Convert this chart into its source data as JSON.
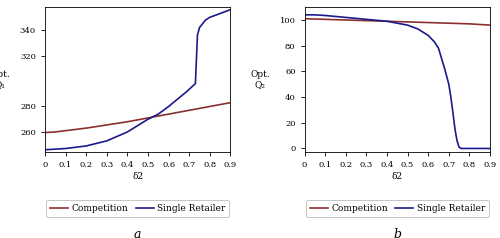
{
  "subplot_a": {
    "xlabel": "δ2",
    "ylabel_line1": "Opt.",
    "ylabel_line2": "Q₁",
    "xlim": [
      0,
      0.9
    ],
    "ylim": [
      244,
      358
    ],
    "yticks": [
      260,
      280,
      320,
      340
    ],
    "xticks": [
      0,
      0.1,
      0.2,
      0.3,
      0.4,
      0.5,
      0.6,
      0.7,
      0.8,
      0.9
    ],
    "xtick_labels": [
      "0",
      "0.1",
      "0.2",
      "0.3",
      "0.4",
      "0.5",
      "0.6",
      "0.7",
      "0.8",
      "0.9"
    ],
    "competition_x": [
      0.0,
      0.05,
      0.1,
      0.2,
      0.3,
      0.4,
      0.5,
      0.6,
      0.65,
      0.7,
      0.75,
      0.8,
      0.85,
      0.9
    ],
    "competition_y": [
      259.5,
      260,
      261,
      263,
      265.5,
      268,
      271,
      274,
      275.5,
      277,
      278.5,
      280,
      281.5,
      283
    ],
    "single_x": [
      0.0,
      0.05,
      0.1,
      0.2,
      0.3,
      0.4,
      0.5,
      0.55,
      0.6,
      0.63,
      0.66,
      0.69,
      0.71,
      0.73,
      0.74,
      0.75,
      0.77,
      0.78,
      0.8,
      0.85,
      0.9
    ],
    "single_y": [
      246,
      246.5,
      247,
      249,
      253,
      260,
      270,
      274,
      280,
      284,
      288,
      292,
      295,
      298,
      336,
      342,
      346,
      348,
      350,
      353,
      356
    ],
    "label": "a"
  },
  "subplot_b": {
    "xlabel": "δ2",
    "ylabel_line1": "Opt.",
    "ylabel_line2": "Q₂",
    "xlim": [
      0,
      0.9
    ],
    "ylim": [
      -3,
      110
    ],
    "yticks": [
      0,
      20,
      40,
      60,
      80,
      100
    ],
    "xticks": [
      0,
      0.1,
      0.2,
      0.3,
      0.4,
      0.5,
      0.6,
      0.7,
      0.8,
      0.9
    ],
    "xtick_labels": [
      "0",
      "0.1",
      "0.2",
      "0.3",
      "0.4",
      "0.5",
      "0.6",
      "0.7",
      "0.8",
      "0.9"
    ],
    "competition_x": [
      0.0,
      0.1,
      0.2,
      0.3,
      0.4,
      0.5,
      0.6,
      0.7,
      0.8,
      0.9
    ],
    "competition_y": [
      101,
      100.5,
      100,
      99.5,
      99,
      98.5,
      98,
      97.5,
      97,
      96
    ],
    "single_x": [
      0.0,
      0.05,
      0.1,
      0.2,
      0.3,
      0.4,
      0.5,
      0.55,
      0.6,
      0.63,
      0.65,
      0.68,
      0.7,
      0.71,
      0.72,
      0.73,
      0.74,
      0.75,
      0.76,
      0.77,
      0.78,
      0.8,
      0.9
    ],
    "single_y": [
      104,
      104,
      103.5,
      102,
      100.5,
      99,
      96,
      93,
      88,
      83,
      78,
      62,
      50,
      40,
      28,
      15,
      6,
      1,
      0,
      0,
      0,
      0,
      0
    ],
    "label": "b"
  },
  "competition_color": "#8B3030",
  "single_color": "#1a1a8c",
  "line_width": 1.2,
  "bg_color": "#ffffff",
  "legend_fontsize": 6.5,
  "tick_fontsize": 6,
  "label_fontsize": 6.5,
  "italic_fontsize": 9
}
